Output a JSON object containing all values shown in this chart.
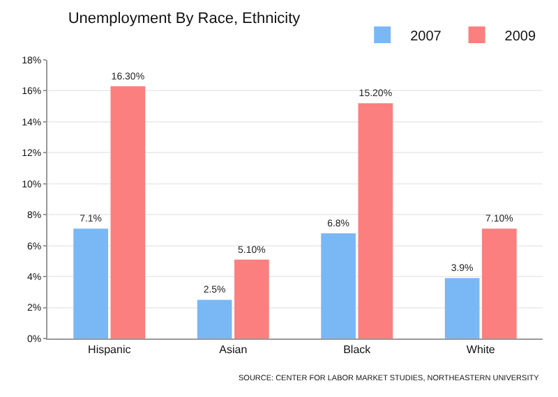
{
  "chart_data": {
    "type": "bar",
    "title": "Unemployment By Race, Ethnicity",
    "categories": [
      "Hispanic",
      "Asian",
      "Black",
      "White"
    ],
    "series": [
      {
        "name": "2007",
        "color": "#7ab8f5",
        "values": [
          7.1,
          2.5,
          6.8,
          3.9
        ],
        "value_labels": [
          "7.1%",
          "2.5%",
          "6.8%",
          "3.9%"
        ]
      },
      {
        "name": "2009",
        "color": "#fb7f7f",
        "values": [
          16.3,
          5.1,
          15.2,
          7.1
        ],
        "value_labels": [
          "16.30%",
          "5.10%",
          "15.20%",
          "7.10%"
        ]
      }
    ],
    "ylim": [
      0,
      18
    ],
    "yticks": [
      {
        "value": 0,
        "label": "0%"
      },
      {
        "value": 2,
        "label": "2%"
      },
      {
        "value": 4,
        "label": "4%"
      },
      {
        "value": 6,
        "label": "6%"
      },
      {
        "value": 8,
        "label": "8%"
      },
      {
        "value": 10,
        "label": "10%"
      },
      {
        "value": 12,
        "label": "12%"
      },
      {
        "value": 14,
        "label": "14%"
      },
      {
        "value": 16,
        "label": "16%"
      },
      {
        "value": 18,
        "label": "18%"
      }
    ],
    "grid": "y",
    "legend": "top",
    "annotations": [
      "SOURCE: CENTER FOR LABOR MARKET STUDIES, NORTHEASTERN UNIVERSITY"
    ]
  }
}
